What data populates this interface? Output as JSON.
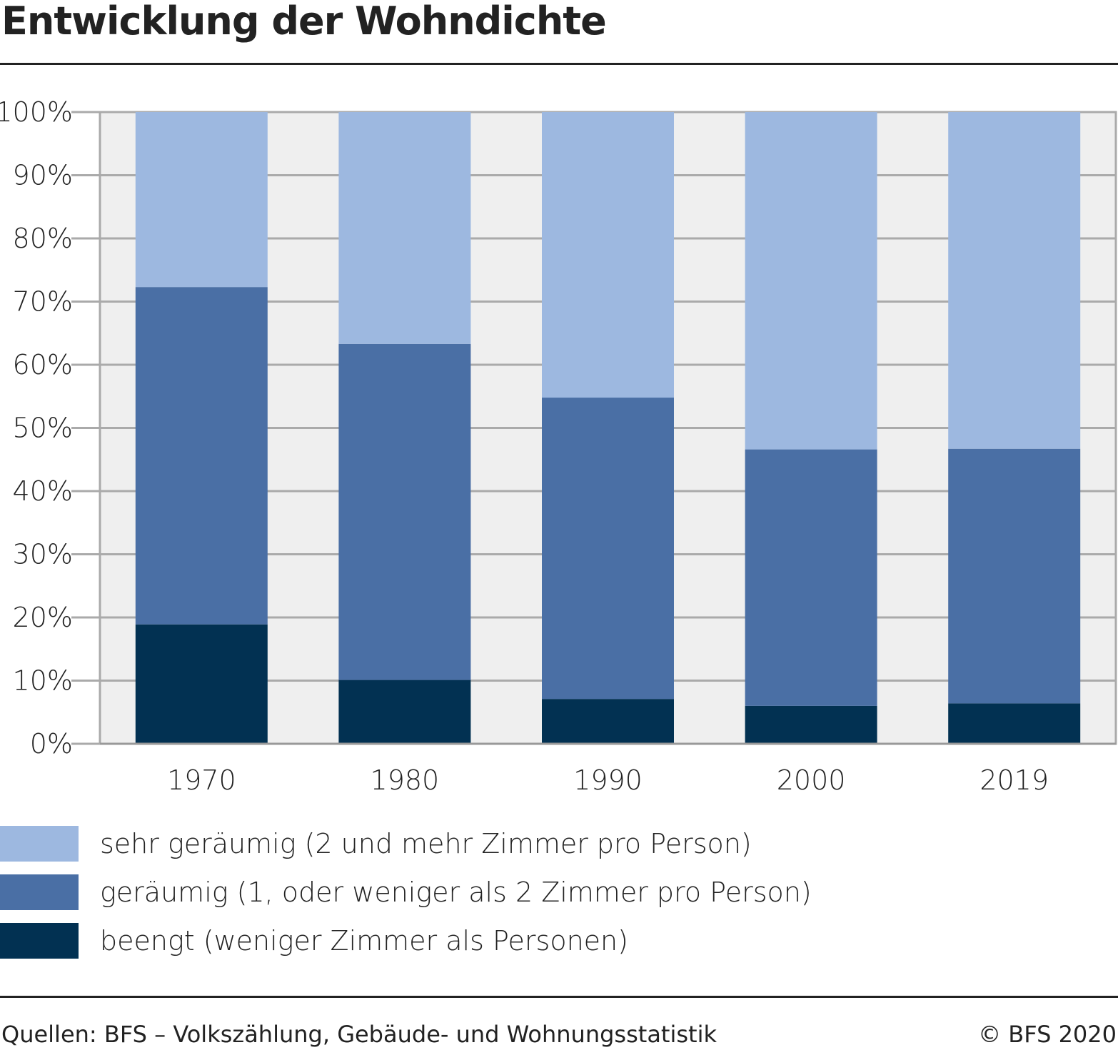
{
  "chart_data": {
    "type": "bar",
    "stacked": true,
    "title": "Entwicklung der Wohndichte",
    "categories": [
      "1970",
      "1980",
      "1990",
      "2000",
      "2019"
    ],
    "ylim": [
      0,
      100
    ],
    "yticks": [
      "0%",
      "10%",
      "20%",
      "30%",
      "40%",
      "50%",
      "60%",
      "70%",
      "80%",
      "90%",
      "100%"
    ],
    "grid": true,
    "legend_position": "bottom",
    "series": [
      {
        "name": "beengt (weniger Zimmer als Personen)",
        "color": "#023152",
        "values": [
          18.9,
          10.1,
          7.1,
          6.0,
          6.4
        ]
      },
      {
        "name": "geräumig (1, oder weniger als 2 Zimmer pro Person)",
        "color": "#4a6fa5",
        "values": [
          53.4,
          53.2,
          47.7,
          40.6,
          40.3
        ]
      },
      {
        "name": "sehr geräumig (2 und mehr Zimmer pro Person)",
        "color": "#9db8e0",
        "values": [
          27.7,
          36.7,
          45.2,
          53.4,
          53.3
        ]
      }
    ]
  },
  "footer": {
    "source": "Quellen: BFS – Volkszählung, Gebäude- und Wohnungsstatistik",
    "copyright": "© BFS 2020"
  }
}
